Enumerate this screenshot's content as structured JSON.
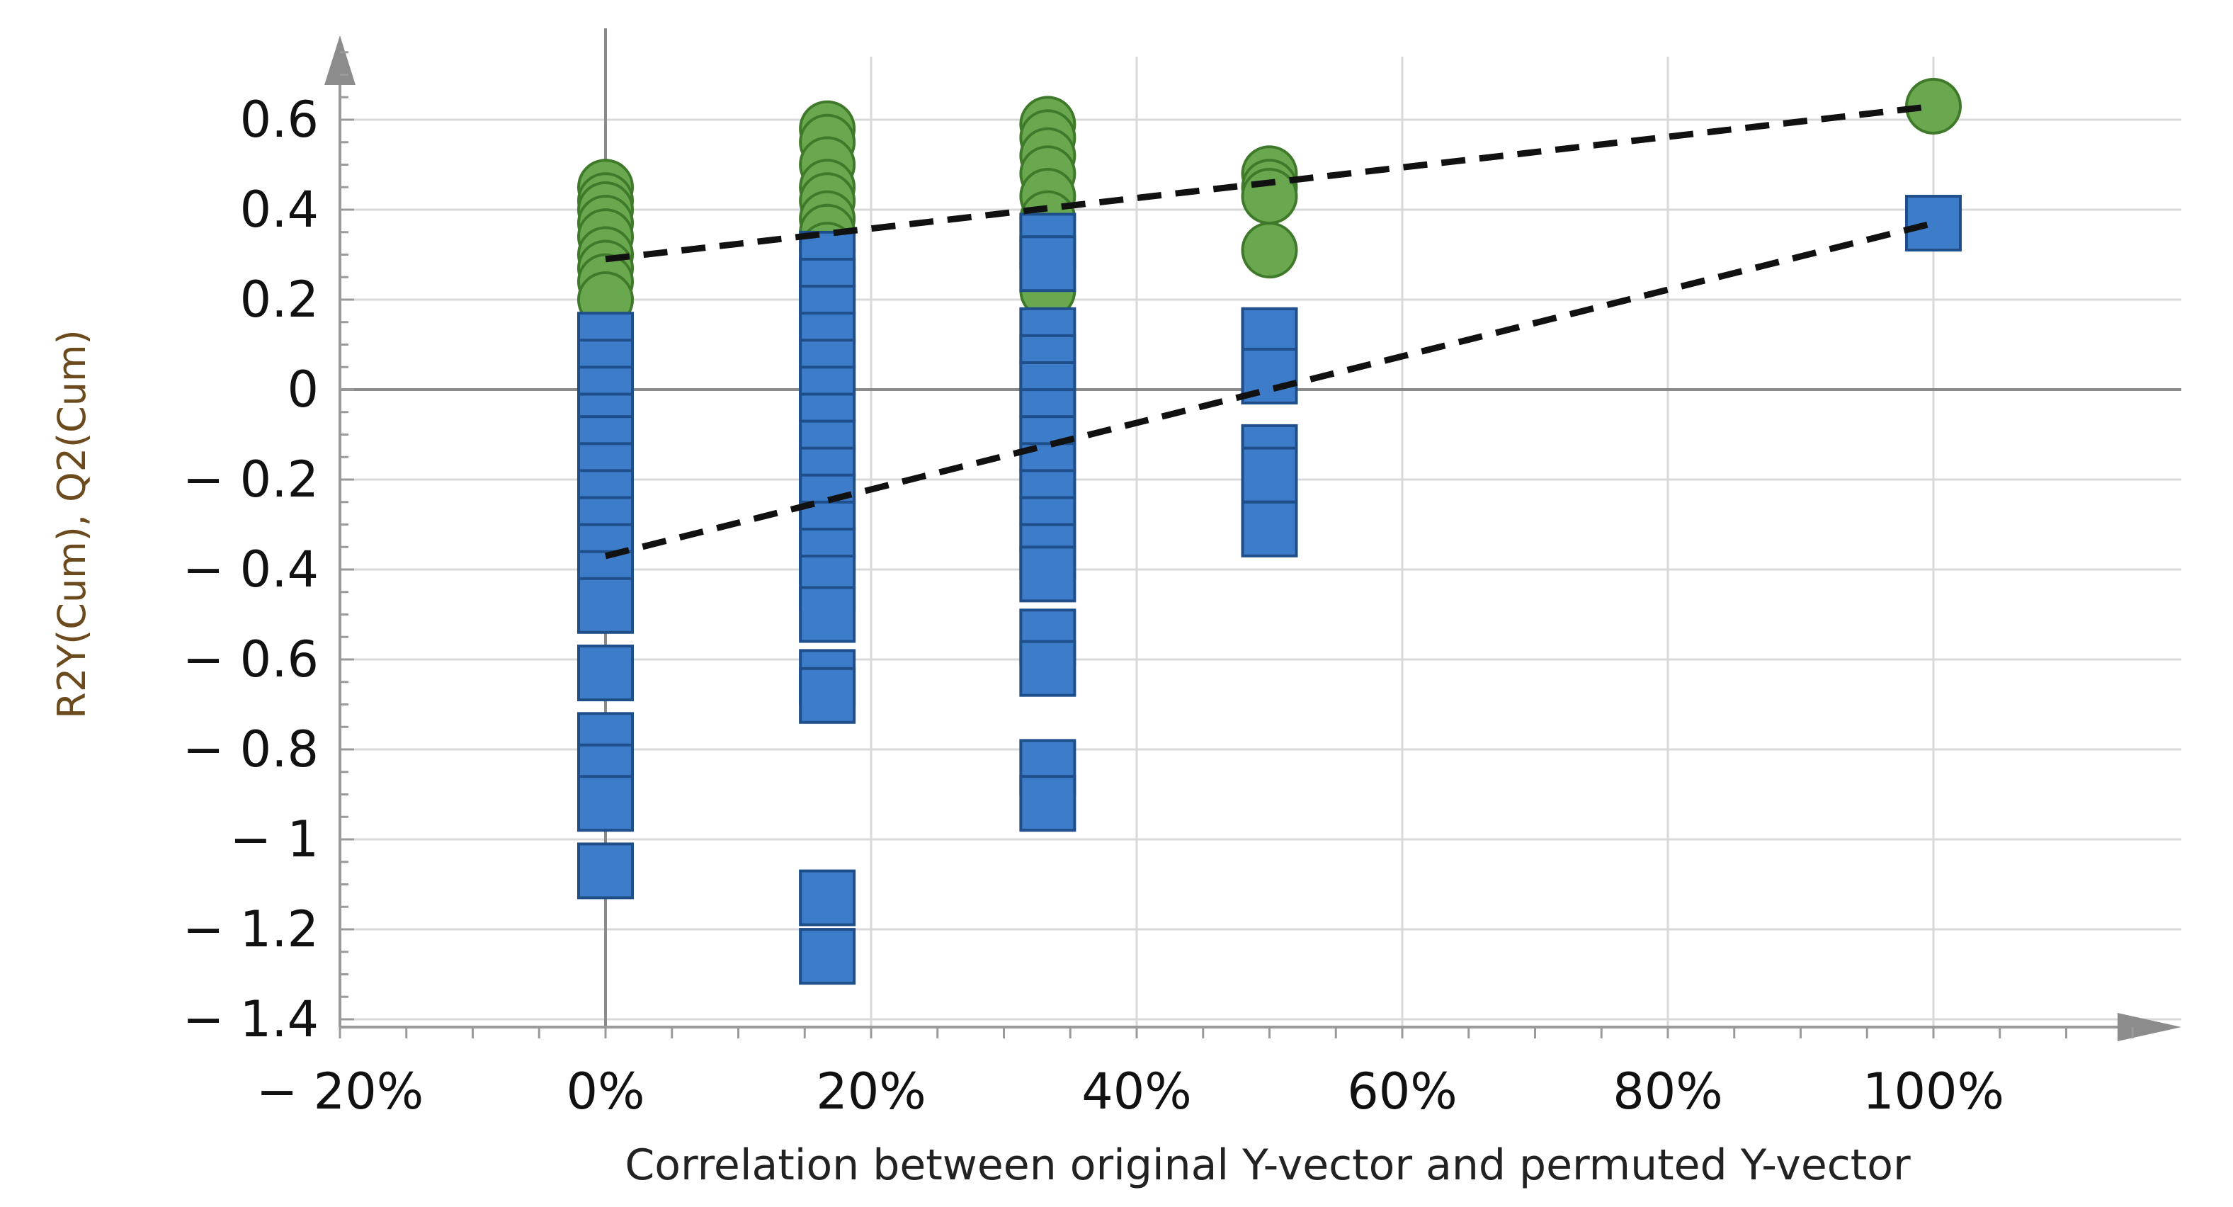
{
  "chart_data": {
    "type": "scatter",
    "title": "",
    "xlabel": "Correlation between original Y-vector and permuted Y-vector",
    "ylabel": "R2Y(Cum), Q2(Cum)",
    "xlim": [
      -0.2,
      1.2
    ],
    "ylim": [
      -1.4,
      0.75
    ],
    "grid": true,
    "x_ticks": [
      {
        "value": -0.2,
        "label": "− 20%"
      },
      {
        "value": 0.0,
        "label": "0%"
      },
      {
        "value": 0.2,
        "label": "20%"
      },
      {
        "value": 0.4,
        "label": "40%"
      },
      {
        "value": 0.6,
        "label": "60%"
      },
      {
        "value": 0.8,
        "label": "80%"
      },
      {
        "value": 1.0,
        "label": "100%"
      }
    ],
    "y_ticks": [
      {
        "value": 0.6,
        "label": "0.6"
      },
      {
        "value": 0.4,
        "label": "0.4"
      },
      {
        "value": 0.2,
        "label": "0.2"
      },
      {
        "value": 0.0,
        "label": "0"
      },
      {
        "value": -0.2,
        "label": "− 0.2"
      },
      {
        "value": -0.4,
        "label": "− 0.4"
      },
      {
        "value": -0.6,
        "label": "− 0.6"
      },
      {
        "value": -0.8,
        "label": "− 0.8"
      },
      {
        "value": -1.0,
        "label": "− 1"
      },
      {
        "value": -1.2,
        "label": "− 1.2"
      },
      {
        "value": -1.4,
        "label": "− 1.4"
      }
    ],
    "series": [
      {
        "name": "R2Y(Cum)",
        "marker": "circle",
        "color": "#6aa84f",
        "stroke": "#3f7a2a",
        "points": [
          {
            "x": 0.0,
            "y": 0.45
          },
          {
            "x": 0.0,
            "y": 0.42
          },
          {
            "x": 0.0,
            "y": 0.4
          },
          {
            "x": 0.0,
            "y": 0.37
          },
          {
            "x": 0.0,
            "y": 0.34
          },
          {
            "x": 0.0,
            "y": 0.3
          },
          {
            "x": 0.0,
            "y": 0.27
          },
          {
            "x": 0.0,
            "y": 0.24
          },
          {
            "x": 0.0,
            "y": 0.2
          },
          {
            "x": 0.167,
            "y": 0.58
          },
          {
            "x": 0.167,
            "y": 0.55
          },
          {
            "x": 0.167,
            "y": 0.5
          },
          {
            "x": 0.167,
            "y": 0.45
          },
          {
            "x": 0.167,
            "y": 0.42
          },
          {
            "x": 0.167,
            "y": 0.38
          },
          {
            "x": 0.167,
            "y": 0.35
          },
          {
            "x": 0.167,
            "y": 0.31
          },
          {
            "x": 0.167,
            "y": 0.27
          },
          {
            "x": 0.167,
            "y": 0.22
          },
          {
            "x": 0.333,
            "y": 0.59
          },
          {
            "x": 0.333,
            "y": 0.56
          },
          {
            "x": 0.333,
            "y": 0.52
          },
          {
            "x": 0.333,
            "y": 0.48
          },
          {
            "x": 0.333,
            "y": 0.43
          },
          {
            "x": 0.333,
            "y": 0.38
          },
          {
            "x": 0.333,
            "y": 0.33
          },
          {
            "x": 0.333,
            "y": 0.28
          },
          {
            "x": 0.333,
            "y": 0.22
          },
          {
            "x": 0.5,
            "y": 0.48
          },
          {
            "x": 0.5,
            "y": 0.45
          },
          {
            "x": 0.5,
            "y": 0.43
          },
          {
            "x": 0.5,
            "y": 0.31
          },
          {
            "x": 1.0,
            "y": 0.63
          }
        ]
      },
      {
        "name": "Q2(Cum)",
        "marker": "square",
        "color": "#3d7cc9",
        "stroke": "#1f4f8a",
        "points": [
          {
            "x": 0.0,
            "y": 0.11
          },
          {
            "x": 0.0,
            "y": 0.05
          },
          {
            "x": 0.0,
            "y": -0.01
          },
          {
            "x": 0.0,
            "y": -0.07
          },
          {
            "x": 0.0,
            "y": -0.12
          },
          {
            "x": 0.0,
            "y": -0.18
          },
          {
            "x": 0.0,
            "y": -0.24
          },
          {
            "x": 0.0,
            "y": -0.3
          },
          {
            "x": 0.0,
            "y": -0.36
          },
          {
            "x": 0.0,
            "y": -0.42
          },
          {
            "x": 0.0,
            "y": -0.48
          },
          {
            "x": 0.0,
            "y": -0.63
          },
          {
            "x": 0.0,
            "y": -0.78
          },
          {
            "x": 0.0,
            "y": -0.85
          },
          {
            "x": 0.0,
            "y": -0.92
          },
          {
            "x": 0.0,
            "y": -1.07
          },
          {
            "x": 0.167,
            "y": 0.29
          },
          {
            "x": 0.167,
            "y": 0.23
          },
          {
            "x": 0.167,
            "y": 0.17
          },
          {
            "x": 0.167,
            "y": 0.11
          },
          {
            "x": 0.167,
            "y": 0.05
          },
          {
            "x": 0.167,
            "y": -0.01
          },
          {
            "x": 0.167,
            "y": -0.07
          },
          {
            "x": 0.167,
            "y": -0.13
          },
          {
            "x": 0.167,
            "y": -0.19
          },
          {
            "x": 0.167,
            "y": -0.25
          },
          {
            "x": 0.167,
            "y": -0.31
          },
          {
            "x": 0.167,
            "y": -0.37
          },
          {
            "x": 0.167,
            "y": -0.43
          },
          {
            "x": 0.167,
            "y": -0.5
          },
          {
            "x": 0.167,
            "y": -0.64
          },
          {
            "x": 0.167,
            "y": -0.68
          },
          {
            "x": 0.167,
            "y": -1.13
          },
          {
            "x": 0.167,
            "y": -1.26
          },
          {
            "x": 0.333,
            "y": 0.33
          },
          {
            "x": 0.333,
            "y": 0.28
          },
          {
            "x": 0.333,
            "y": 0.12
          },
          {
            "x": 0.333,
            "y": 0.06
          },
          {
            "x": 0.333,
            "y": 0.0
          },
          {
            "x": 0.333,
            "y": -0.06
          },
          {
            "x": 0.333,
            "y": -0.12
          },
          {
            "x": 0.333,
            "y": -0.18
          },
          {
            "x": 0.333,
            "y": -0.24
          },
          {
            "x": 0.333,
            "y": -0.3
          },
          {
            "x": 0.333,
            "y": -0.36
          },
          {
            "x": 0.333,
            "y": -0.41
          },
          {
            "x": 0.333,
            "y": -0.55
          },
          {
            "x": 0.333,
            "y": -0.62
          },
          {
            "x": 0.333,
            "y": -0.84
          },
          {
            "x": 0.333,
            "y": -0.92
          },
          {
            "x": 0.5,
            "y": 0.12
          },
          {
            "x": 0.5,
            "y": 0.03
          },
          {
            "x": 0.5,
            "y": -0.14
          },
          {
            "x": 0.5,
            "y": -0.19
          },
          {
            "x": 0.5,
            "y": -0.31
          },
          {
            "x": 1.0,
            "y": 0.37
          }
        ]
      }
    ],
    "regression_lines": [
      {
        "name": "R2Y(Cum) intercept line",
        "x1": 0.0,
        "y1": 0.29,
        "x2": 1.0,
        "y2": 0.63
      },
      {
        "name": "Q2(Cum) intercept line",
        "x1": 0.0,
        "y1": -0.37,
        "x2": 1.0,
        "y2": 0.37
      }
    ]
  }
}
